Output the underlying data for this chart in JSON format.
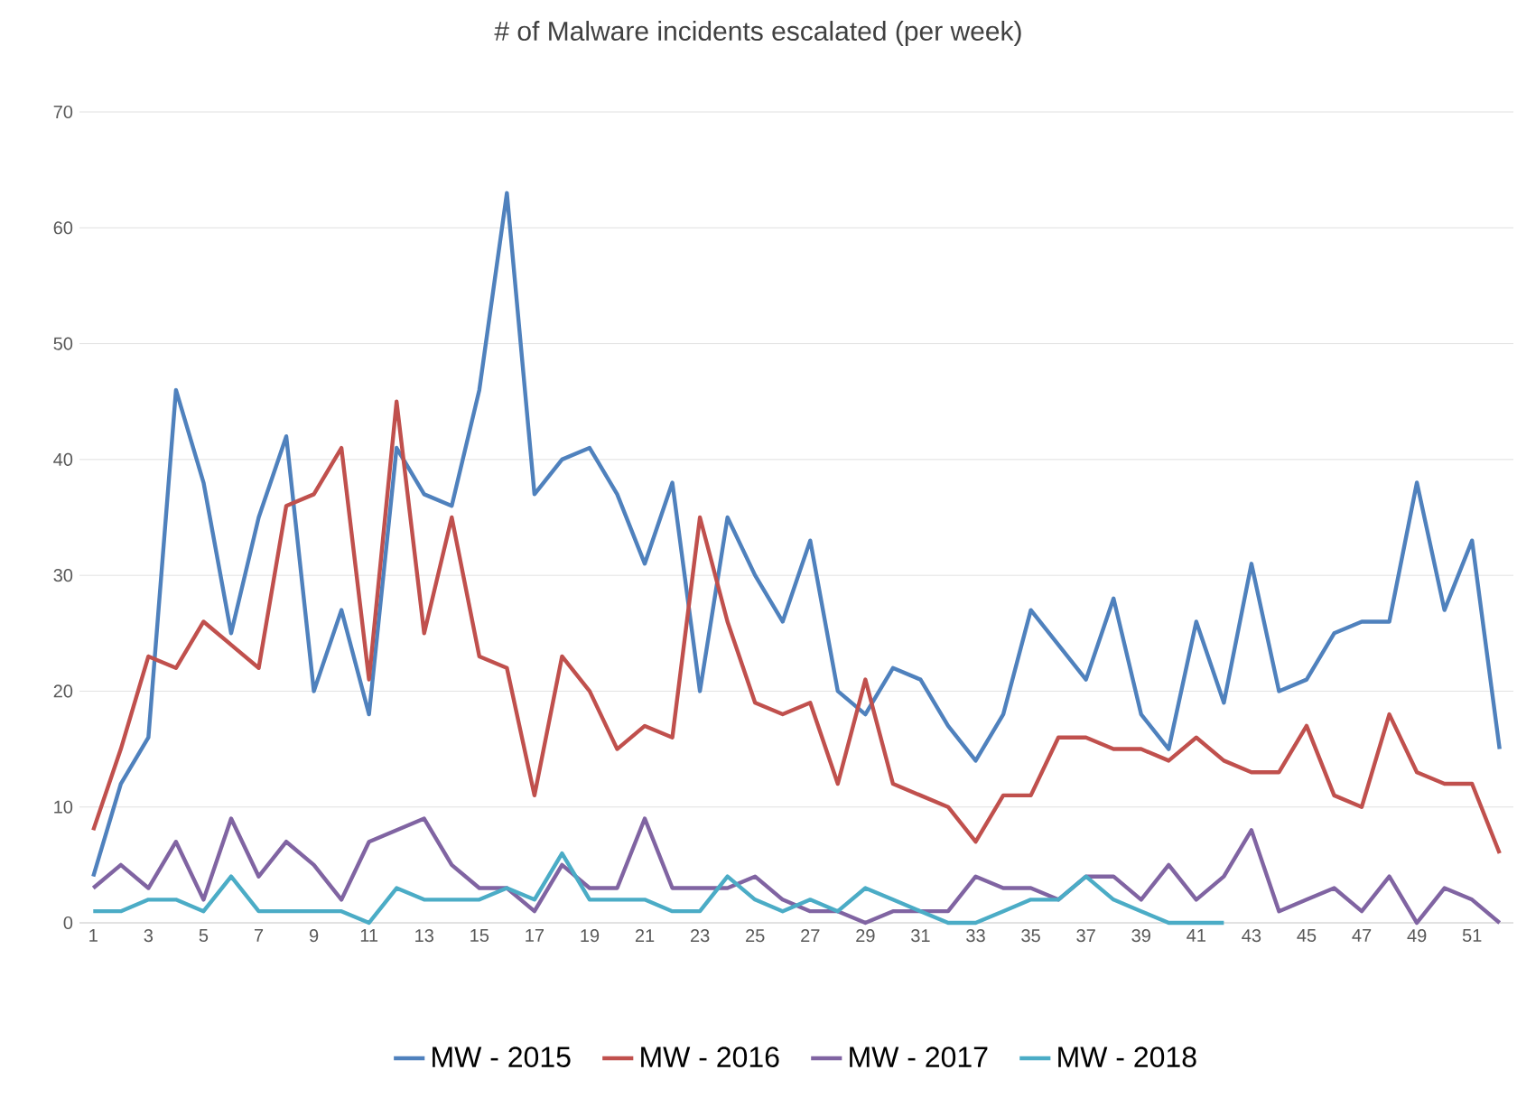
{
  "chart_data": {
    "type": "line",
    "title": "# of Malware incidents escalated (per week)",
    "x": [
      1,
      2,
      3,
      4,
      5,
      6,
      7,
      8,
      9,
      10,
      11,
      12,
      13,
      14,
      15,
      16,
      17,
      18,
      19,
      20,
      21,
      22,
      23,
      24,
      25,
      26,
      27,
      28,
      29,
      30,
      31,
      32,
      33,
      34,
      35,
      36,
      37,
      38,
      39,
      40,
      41,
      42,
      43,
      44,
      45,
      46,
      47,
      48,
      49,
      50,
      51,
      52
    ],
    "xlim": [
      0.5,
      52.5
    ],
    "xticks": [
      1,
      3,
      5,
      7,
      9,
      11,
      13,
      15,
      17,
      19,
      21,
      23,
      25,
      27,
      29,
      31,
      33,
      35,
      37,
      39,
      41,
      43,
      45,
      47,
      49,
      51
    ],
    "ylim": [
      0,
      70
    ],
    "yticks": [
      0,
      10,
      20,
      30,
      40,
      50,
      60,
      70
    ],
    "grid": "y",
    "legend": "bottom",
    "marker": "none",
    "line_style": "solid",
    "series": [
      {
        "name": "MW - 2015",
        "color": "#4f81bd",
        "values": [
          4,
          12,
          16,
          46,
          38,
          25,
          35,
          42,
          20,
          27,
          18,
          41,
          37,
          36,
          46,
          63,
          37,
          40,
          41,
          37,
          31,
          38,
          20,
          35,
          30,
          26,
          33,
          20,
          18,
          22,
          21,
          17,
          14,
          18,
          27,
          24,
          21,
          28,
          18,
          15,
          26,
          19,
          31,
          20,
          21,
          25,
          26,
          26,
          38,
          27,
          33,
          15
        ]
      },
      {
        "name": "MW - 2016",
        "color": "#c0504d",
        "values": [
          8,
          15,
          23,
          22,
          26,
          24,
          22,
          36,
          37,
          41,
          21,
          45,
          25,
          35,
          23,
          22,
          11,
          23,
          20,
          15,
          17,
          16,
          35,
          26,
          19,
          18,
          19,
          12,
          21,
          12,
          11,
          10,
          7,
          11,
          11,
          16,
          16,
          15,
          15,
          14,
          16,
          14,
          13,
          13,
          17,
          11,
          10,
          18,
          13,
          12,
          12,
          6
        ]
      },
      {
        "name": "MW - 2017",
        "color": "#8064a2",
        "values": [
          3,
          5,
          3,
          7,
          2,
          9,
          4,
          7,
          5,
          2,
          7,
          8,
          9,
          5,
          3,
          3,
          1,
          5,
          3,
          3,
          9,
          3,
          3,
          3,
          4,
          2,
          1,
          1,
          0,
          1,
          1,
          1,
          4,
          3,
          3,
          2,
          4,
          4,
          2,
          5,
          2,
          4,
          8,
          1,
          2,
          3,
          1,
          4,
          0,
          3,
          2,
          0
        ]
      },
      {
        "name": "MW - 2018",
        "color": "#4bacc6",
        "values": [
          1,
          1,
          2,
          2,
          1,
          4,
          1,
          1,
          1,
          1,
          0,
          3,
          2,
          2,
          2,
          3,
          2,
          6,
          2,
          2,
          2,
          1,
          1,
          4,
          2,
          1,
          2,
          1,
          3,
          2,
          1,
          0,
          0,
          1,
          2,
          2,
          4,
          2,
          1,
          0,
          0,
          0,
          null,
          null,
          null,
          null,
          null,
          null,
          null,
          null,
          null,
          null
        ]
      }
    ]
  }
}
